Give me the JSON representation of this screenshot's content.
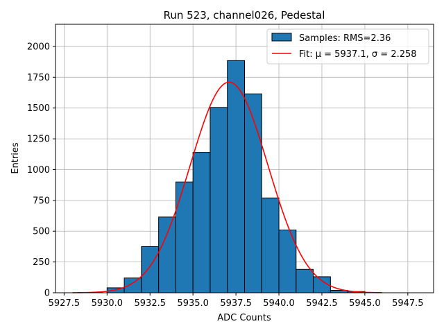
{
  "chart_data": {
    "type": "bar",
    "title": "Run 523, channel026, Pedestal",
    "xlabel": "ADC Counts",
    "ylabel": "Entries",
    "xlim": [
      5927,
      5949
    ],
    "ylim": [
      0,
      2180
    ],
    "xticks": [
      5927.5,
      5930.0,
      5932.5,
      5935.0,
      5937.5,
      5940.0,
      5942.5,
      5945.0,
      5947.5
    ],
    "xtick_labels": [
      "5927.5",
      "5930.0",
      "5932.5",
      "5935.0",
      "5937.5",
      "5940.0",
      "5942.5",
      "5945.0",
      "5947.5"
    ],
    "yticks": [
      0,
      250,
      500,
      750,
      1000,
      1250,
      1500,
      1750,
      2000
    ],
    "ytick_labels": [
      "0",
      "250",
      "500",
      "750",
      "1000",
      "1250",
      "1500",
      "1750",
      "2000"
    ],
    "grid": true,
    "legend_position": "top-right",
    "bin_width": 1,
    "bins": [
      {
        "x": 5930,
        "value": 40
      },
      {
        "x": 5931,
        "value": 120
      },
      {
        "x": 5932,
        "value": 375
      },
      {
        "x": 5933,
        "value": 615
      },
      {
        "x": 5934,
        "value": 900
      },
      {
        "x": 5935,
        "value": 1140
      },
      {
        "x": 5936,
        "value": 1505
      },
      {
        "x": 5937,
        "value": 1885
      },
      {
        "x": 5938,
        "value": 1615
      },
      {
        "x": 5939,
        "value": 770
      },
      {
        "x": 5940,
        "value": 510
      },
      {
        "x": 5941,
        "value": 190
      },
      {
        "x": 5942,
        "value": 130
      },
      {
        "x": 5943,
        "value": 20
      },
      {
        "x": 5944,
        "value": 10
      }
    ],
    "histogram_color": "#1f77b4",
    "fit": {
      "mu": 5937.1,
      "sigma": 2.258,
      "amplitude": 1710,
      "x_range": [
        5928,
        5946
      ],
      "color": "#ff0000"
    },
    "series": [
      {
        "name": "Samples: RMS=2.36",
        "kind": "histogram"
      },
      {
        "name": "Fit: μ = 5937.1, σ = 2.258",
        "kind": "line"
      }
    ]
  }
}
